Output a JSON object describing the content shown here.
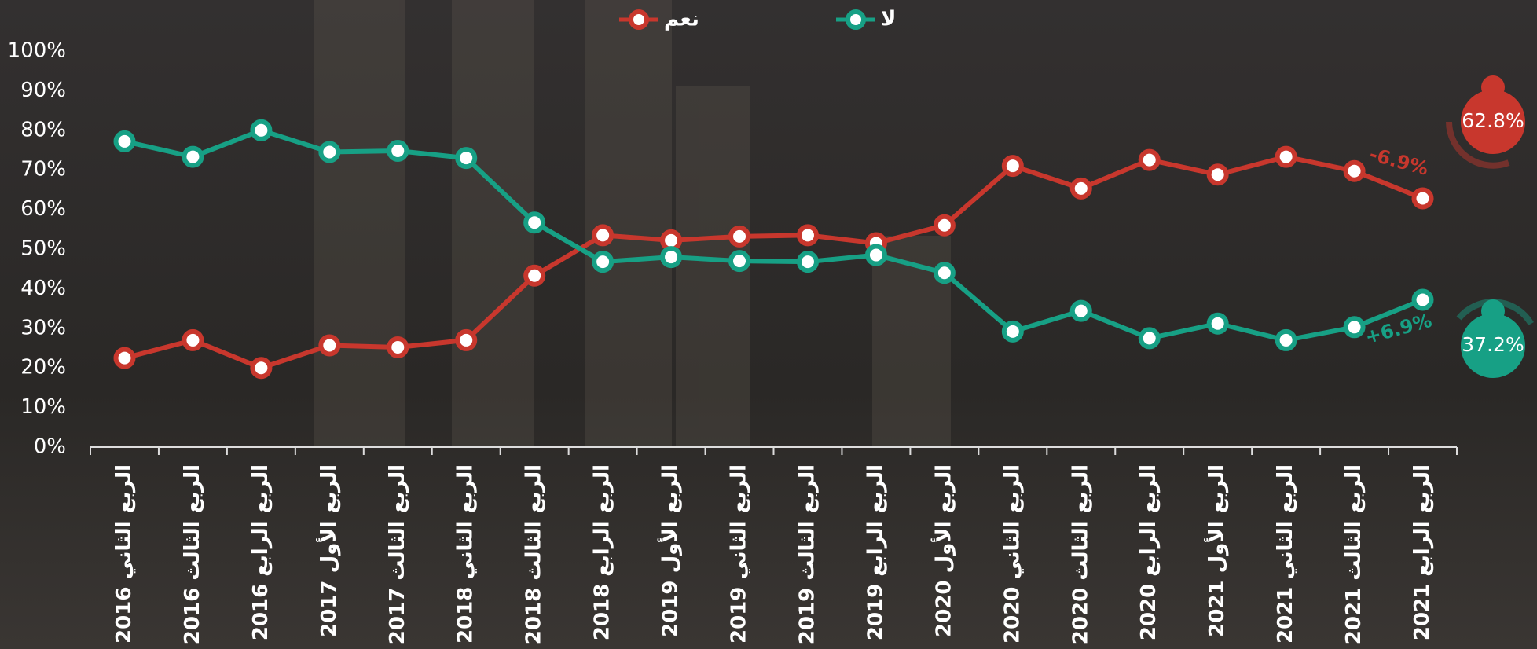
{
  "chart_data": {
    "type": "line",
    "categories": [
      "الربع الثاني 2016",
      "الربع الثالث 2016",
      "الربع الرابع 2016",
      "الربع الأول 2017",
      "الربع الثالث 2017",
      "الربع الثاني 2018",
      "الربع الثالث 2018",
      "الربع الرابع 2018",
      "الربع الأول 2019",
      "الربع الثاني 2019",
      "الربع الثالث 2019",
      "الربع الرابع 2019",
      "الربع الأول 2020",
      "الربع الثاني 2020",
      "الربع الثالث 2020",
      "الربع الرابع 2020",
      "الربع الأول 2021",
      "الربع الثاني 2021",
      "الربع الثالث 2021",
      "الربع الرابع 2021"
    ],
    "series": [
      {
        "name": "نعم",
        "color": "#c8372d",
        "change": "-6.9%",
        "end_label": "62.8%",
        "values": [
          22.5,
          27,
          20,
          25.7,
          25.2,
          27,
          43.3,
          53.5,
          52.2,
          53.2,
          53.5,
          51.5,
          56,
          71,
          65.3,
          72.5,
          68.8,
          73.3,
          69.7,
          62.8
        ]
      },
      {
        "name": "لا",
        "color": "#17a085",
        "change": "+6.9%",
        "end_label": "37.2%",
        "values": [
          77.2,
          73.3,
          80,
          74.5,
          74.8,
          73,
          56.7,
          46.8,
          48,
          47,
          46.8,
          48.5,
          44,
          29.2,
          34.4,
          27.5,
          31.2,
          27,
          30.3,
          37.2
        ]
      }
    ],
    "ylim": [
      0,
      100
    ],
    "yticks": [
      {
        "value": 0,
        "label": "0%"
      },
      {
        "value": 10,
        "label": "10%"
      },
      {
        "value": 20,
        "label": "20%"
      },
      {
        "value": 30,
        "label": "30%"
      },
      {
        "value": 40,
        "label": "40%"
      },
      {
        "value": 50,
        "label": "50%"
      },
      {
        "value": 60,
        "label": "60%"
      },
      {
        "value": 70,
        "label": "70%"
      },
      {
        "value": 80,
        "label": "80%"
      },
      {
        "value": 90,
        "label": "90%"
      },
      {
        "value": 100,
        "label": "100%"
      }
    ],
    "grid": false
  }
}
